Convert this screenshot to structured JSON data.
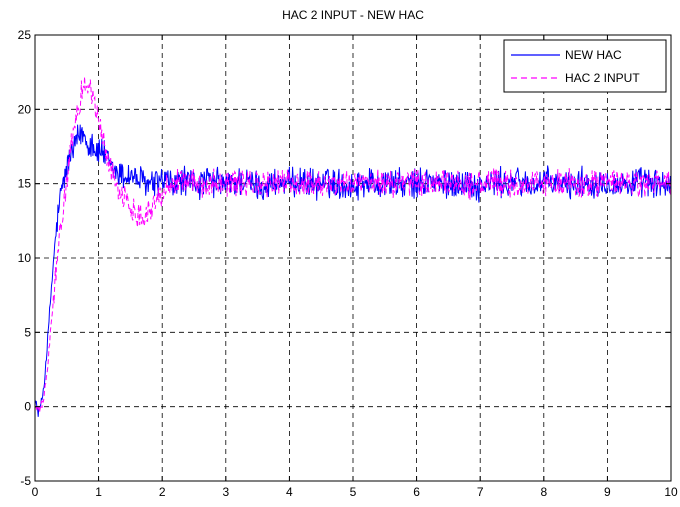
{
  "chart_data": {
    "type": "line",
    "title": "HAC 2 INPUT - NEW HAC",
    "xlabel": "",
    "ylabel": "",
    "xlim": [
      0,
      10
    ],
    "ylim": [
      -5,
      25
    ],
    "x_ticks": [
      0,
      1,
      2,
      3,
      4,
      5,
      6,
      7,
      8,
      9,
      10
    ],
    "y_ticks": [
      -5,
      0,
      5,
      10,
      15,
      20,
      25
    ],
    "grid": true,
    "legend_position": "top-right",
    "series": [
      {
        "name": "NEW HAC",
        "color": "#0000ff",
        "style": "solid",
        "x": [
          0,
          0.05,
          0.1,
          0.15,
          0.2,
          0.25,
          0.3,
          0.35,
          0.4,
          0.45,
          0.5,
          0.55,
          0.6,
          0.65,
          0.7,
          0.75,
          0.8,
          0.85,
          0.9,
          0.95,
          1.0,
          1.05,
          1.1,
          1.15,
          1.2,
          1.3,
          1.4,
          1.5,
          1.6,
          1.7,
          1.8,
          1.9,
          2.0,
          2.1,
          2.2,
          2.3,
          2.4,
          2.5,
          2.6,
          2.7,
          2.8,
          2.9,
          3.0,
          3.2,
          3.4,
          3.6,
          3.8,
          4.0,
          4.2,
          4.4,
          4.6,
          4.8,
          5.0,
          5.2,
          5.4,
          5.6,
          5.8,
          6.0,
          6.2,
          6.4,
          6.6,
          6.8,
          7.0,
          7.2,
          7.4,
          7.6,
          7.8,
          8.0,
          8.2,
          8.4,
          8.6,
          8.8,
          9.0,
          9.2,
          9.4,
          9.6,
          9.8,
          10.0
        ],
        "y": [
          0.5,
          -0.4,
          0.2,
          1.8,
          4.5,
          7.5,
          10.2,
          12.5,
          14.0,
          15.2,
          16.0,
          16.8,
          17.2,
          17.8,
          18.2,
          18.4,
          18.1,
          17.6,
          17.9,
          17.3,
          17.0,
          17.4,
          16.8,
          16.4,
          16.0,
          15.7,
          15.5,
          15.6,
          15.3,
          15.1,
          14.9,
          15.0,
          15.2,
          15.1,
          14.8,
          15.3,
          15.0,
          15.1,
          14.9,
          15.2,
          15.0,
          15.1,
          14.9,
          15.2,
          15.0,
          14.8,
          15.1,
          15.0,
          15.2,
          14.9,
          15.1,
          15.0,
          14.8,
          15.2,
          15.0,
          15.1,
          14.9,
          15.0,
          15.2,
          14.9,
          15.1,
          15.0,
          14.8,
          15.1,
          15.0,
          15.2,
          14.9,
          15.1,
          15.0,
          14.9,
          15.1,
          15.0,
          15.2,
          14.9,
          15.0,
          15.1,
          14.9,
          15.0
        ],
        "noise_amplitude": 0.9
      },
      {
        "name": "HAC 2 INPUT",
        "color": "#ff00ff",
        "style": "dashed",
        "x": [
          0,
          0.05,
          0.1,
          0.15,
          0.2,
          0.25,
          0.3,
          0.35,
          0.4,
          0.45,
          0.5,
          0.55,
          0.6,
          0.65,
          0.7,
          0.75,
          0.8,
          0.85,
          0.9,
          0.95,
          1.0,
          1.05,
          1.1,
          1.15,
          1.2,
          1.3,
          1.4,
          1.5,
          1.6,
          1.7,
          1.8,
          1.9,
          2.0,
          2.1,
          2.2,
          2.3,
          2.4,
          2.5,
          2.6,
          2.7,
          2.8,
          2.9,
          3.0,
          3.2,
          3.4,
          3.6,
          3.8,
          4.0,
          4.2,
          4.4,
          4.6,
          4.8,
          5.0,
          5.2,
          5.4,
          5.6,
          5.8,
          6.0,
          6.2,
          6.4,
          6.6,
          6.8,
          7.0,
          7.2,
          7.4,
          7.6,
          7.8,
          8.0,
          8.2,
          8.4,
          8.6,
          8.8,
          9.0,
          9.2,
          9.4,
          9.6,
          9.8,
          10.0
        ],
        "y": [
          0.0,
          -0.3,
          0.0,
          0.8,
          2.8,
          5.2,
          7.8,
          9.8,
          11.8,
          13.5,
          15.2,
          16.8,
          18.2,
          19.6,
          20.6,
          21.4,
          21.8,
          21.6,
          20.9,
          20.1,
          19.2,
          18.3,
          17.4,
          16.6,
          15.9,
          14.9,
          14.0,
          13.4,
          13.0,
          12.9,
          13.2,
          13.8,
          14.4,
          14.9,
          15.2,
          15.3,
          15.2,
          15.0,
          14.9,
          15.0,
          15.1,
          15.2,
          15.1,
          15.0,
          15.0,
          14.9,
          15.1,
          15.1,
          15.0,
          15.1,
          15.0,
          15.0,
          15.1,
          14.9,
          15.1,
          15.0,
          15.0,
          15.1,
          14.9,
          15.0,
          15.1,
          14.9,
          15.0,
          15.1,
          15.0,
          14.9,
          15.1,
          15.0,
          15.0,
          15.1,
          14.9,
          15.0,
          15.1,
          15.0,
          15.0,
          14.9,
          15.1,
          15.0
        ],
        "noise_amplitude": 0.8
      }
    ]
  }
}
